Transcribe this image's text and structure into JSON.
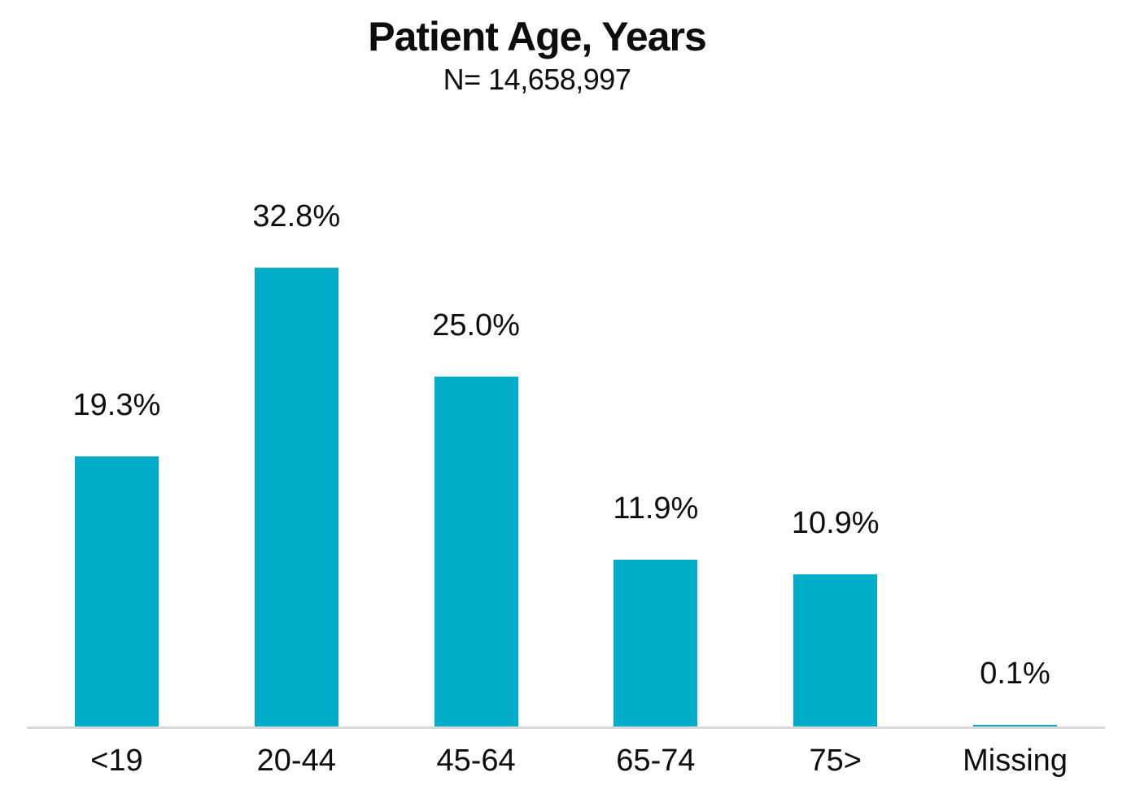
{
  "chart_data": {
    "type": "bar",
    "title": "Patient Age, Years",
    "subtitle": "N= 14,658,997",
    "categories": [
      "<19",
      "20-44",
      "45-64",
      "65-74",
      "75>",
      "Missing"
    ],
    "values": [
      19.3,
      32.8,
      25.0,
      11.9,
      10.9,
      0.1
    ],
    "data_labels": [
      "19.3%",
      "32.8%",
      "25.0%",
      "11.9%",
      "10.9%",
      "0.1%"
    ],
    "unit": "percent of patients",
    "xlabel": "",
    "ylabel": "",
    "ylim": [
      0,
      35
    ],
    "grid": false,
    "legend": false,
    "data_label_position": "outside-end-above-bar",
    "colors": {
      "bar": "#00ADC9",
      "axis_line": "#D9D9D9",
      "text": "#0D0D0D",
      "background": "#FFFFFF"
    }
  }
}
